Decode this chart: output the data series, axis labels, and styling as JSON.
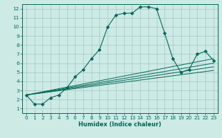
{
  "xlabel": "Humidex (Indice chaleur)",
  "background_color": "#cdeae5",
  "grid_color": "#a0c8c4",
  "line_color": "#006655",
  "xlim": [
    -0.5,
    23.5
  ],
  "ylim": [
    0.5,
    12.5
  ],
  "yticks": [
    1,
    2,
    3,
    4,
    5,
    6,
    7,
    8,
    9,
    10,
    11,
    12
  ],
  "xticks": [
    0,
    1,
    2,
    3,
    4,
    5,
    6,
    7,
    8,
    9,
    10,
    11,
    12,
    13,
    14,
    15,
    16,
    17,
    18,
    19,
    20,
    21,
    22,
    23
  ],
  "main_x": [
    0,
    1,
    2,
    3,
    4,
    5,
    6,
    7,
    8,
    9,
    10,
    11,
    12,
    13,
    14,
    15,
    16,
    17,
    18,
    19,
    20,
    21,
    22,
    23
  ],
  "main_y": [
    2.5,
    1.5,
    1.5,
    2.2,
    2.5,
    3.3,
    4.5,
    5.3,
    6.5,
    7.5,
    10.0,
    11.3,
    11.5,
    11.5,
    12.2,
    12.2,
    12.0,
    9.3,
    6.5,
    5.0,
    5.3,
    7.0,
    7.3,
    6.3
  ],
  "ref_lines": [
    {
      "x": [
        0,
        23
      ],
      "y": [
        2.5,
        6.5
      ]
    },
    {
      "x": [
        0,
        23
      ],
      "y": [
        2.5,
        6.0
      ]
    },
    {
      "x": [
        0,
        23
      ],
      "y": [
        2.5,
        5.6
      ]
    },
    {
      "x": [
        0,
        23
      ],
      "y": [
        2.5,
        5.2
      ]
    }
  ],
  "xlabel_fontsize": 6.0,
  "tick_fontsize": 5.2,
  "marker_size": 2.5
}
